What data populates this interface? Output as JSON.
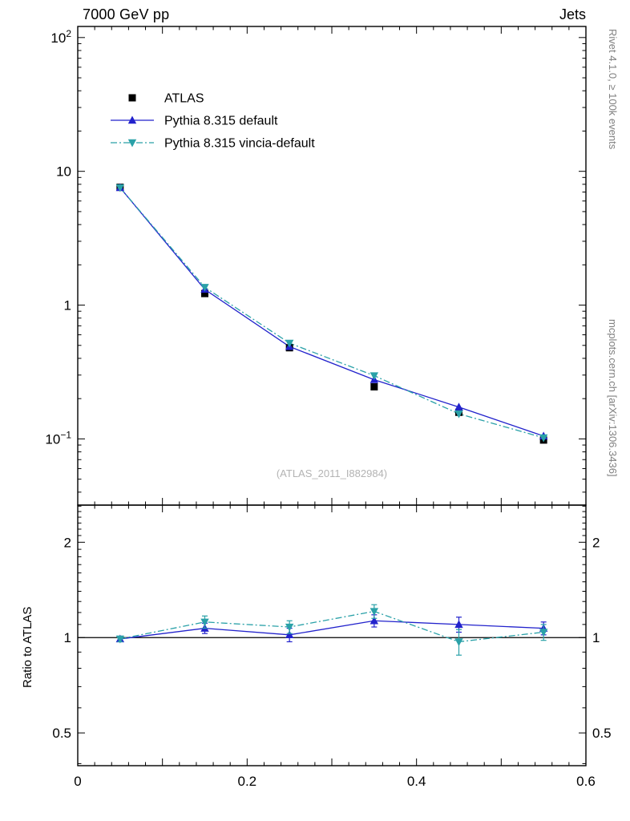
{
  "header": {
    "title_left": "7000 GeV pp",
    "title_right": "Jets"
  },
  "side_labels": {
    "top": "Rivet 4.1.0, ≥ 100k events",
    "bottom": "mcplots.cern.ch [arXiv:1306.3436]"
  },
  "watermark": "(ATLAS_2011_I882984)",
  "ratio_ylabel": "Ratio to ATLAS",
  "colors": {
    "atlas": "#000000",
    "pythia_default": "#2222cc",
    "pythia_vincia": "#2aa1a8",
    "frame": "#000000",
    "annotation_gray": "#808080"
  },
  "legend": [
    {
      "label": "ATLAS",
      "marker": "square",
      "color": "#000000",
      "line": "none"
    },
    {
      "label": "Pythia 8.315 default",
      "marker": "triangle-up",
      "color": "#2222cc",
      "line": "solid"
    },
    {
      "label": "Pythia 8.315 vincia-default",
      "marker": "triangle-down",
      "color": "#2aa1a8",
      "line": "dashdot"
    }
  ],
  "chart_data": {
    "type": "line",
    "title": "Jets, 7000 GeV pp",
    "xlabel": "",
    "ylabel": "",
    "x": [
      0.05,
      0.15,
      0.25,
      0.35,
      0.45,
      0.55
    ],
    "xlim": [
      0,
      0.6
    ],
    "x_minor_step": 0.02,
    "x_ticks": [
      {
        "v": 0,
        "label": "0"
      },
      {
        "v": 0.2,
        "label": "0.2"
      },
      {
        "v": 0.4,
        "label": "0.4"
      },
      {
        "v": 0.6,
        "label": "0.6"
      }
    ],
    "main_yscale": "log",
    "main_ylim": [
      0.032,
      121
    ],
    "main_y_ticks": [
      {
        "v": 100,
        "base": "10",
        "exp": "2"
      },
      {
        "v": 10,
        "base": "10",
        "exp": ""
      },
      {
        "v": 1,
        "base": "1",
        "exp": ""
      },
      {
        "v": 0.1,
        "base": "10",
        "exp": "−1"
      }
    ],
    "series": [
      {
        "name": "ATLAS",
        "marker": "square",
        "color": "#000000",
        "line": "none",
        "values": [
          7.6,
          1.22,
          0.48,
          0.245,
          0.158,
          0.098
        ]
      },
      {
        "name": "Pythia 8.315 default",
        "marker": "triangle-up",
        "color": "#2222cc",
        "line": "solid",
        "values": [
          7.55,
          1.31,
          0.49,
          0.277,
          0.173,
          0.105
        ]
      },
      {
        "name": "Pythia 8.315 vincia-default",
        "marker": "triangle-down",
        "color": "#2aa1a8",
        "line": "dashdot",
        "values": [
          7.55,
          1.36,
          0.52,
          0.297,
          0.154,
          0.102
        ]
      }
    ],
    "ratio_yscale": "log",
    "ratio_ylim": [
      0.394,
      2.62
    ],
    "ratio_y_ticks": [
      {
        "v": 2,
        "label": "2"
      },
      {
        "v": 1,
        "label": "1"
      },
      {
        "v": 0.5,
        "label": "0.5"
      }
    ],
    "ratio_reference": 1,
    "ratio_series": [
      {
        "name": "Pythia 8.315 default",
        "marker": "triangle-up",
        "color": "#2222cc",
        "line": "solid",
        "values": [
          0.99,
          1.07,
          1.02,
          1.13,
          1.1,
          1.07
        ],
        "errors": [
          0.02,
          0.04,
          0.05,
          0.05,
          0.06,
          0.05
        ]
      },
      {
        "name": "Pythia 8.315 vincia-default",
        "marker": "triangle-down",
        "color": "#2aa1a8",
        "line": "dashdot",
        "values": [
          0.99,
          1.12,
          1.08,
          1.21,
          0.97,
          1.04
        ],
        "errors": [
          0.02,
          0.05,
          0.05,
          0.06,
          0.09,
          0.06
        ]
      }
    ]
  }
}
